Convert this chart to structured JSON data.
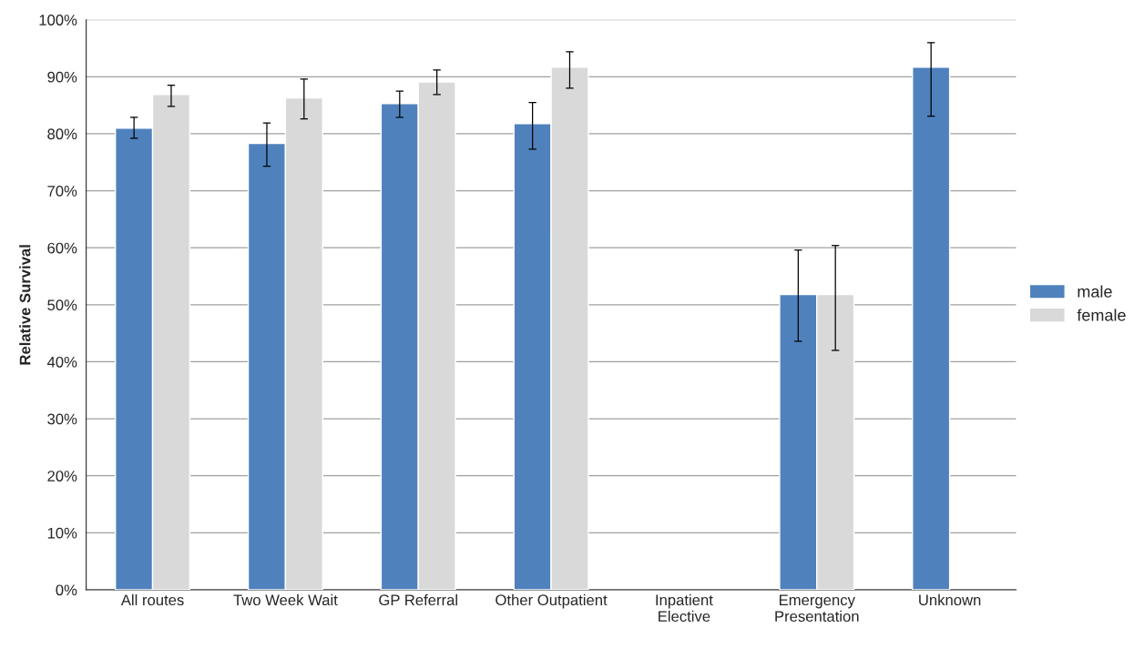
{
  "chart_data": {
    "type": "bar",
    "ylabel": "Relative Survival",
    "categories": [
      "All routes",
      "Two Week Wait",
      "GP Referral",
      "Other Outpatient",
      "Inpatient\nElective",
      "Emergency\nPresentation",
      "Unknown"
    ],
    "series": [
      {
        "name": "male",
        "color": "#4f81bd",
        "values": [
          81.0,
          78.3,
          85.3,
          81.8,
          null,
          51.8,
          91.7
        ],
        "errors": [
          [
            79.2,
            82.9
          ],
          [
            74.3,
            81.9
          ],
          [
            82.9,
            87.5
          ],
          [
            77.3,
            85.5
          ],
          null,
          [
            43.6,
            59.6
          ],
          [
            83.1,
            96.0
          ]
        ]
      },
      {
        "name": "female",
        "color": "#d9d9d9",
        "values": [
          86.9,
          86.3,
          89.1,
          91.7,
          null,
          51.8,
          null
        ],
        "errors": [
          [
            84.8,
            88.5
          ],
          [
            82.6,
            89.6
          ],
          [
            86.9,
            91.2
          ],
          [
            88.0,
            94.4
          ],
          null,
          [
            42.0,
            60.4
          ],
          null
        ]
      }
    ],
    "ylim": [
      0,
      100
    ],
    "yticks": [
      {
        "value": 0,
        "label": "0%"
      },
      {
        "value": 10,
        "label": "10%"
      },
      {
        "value": 20,
        "label": "20%"
      },
      {
        "value": 30,
        "label": "30%"
      },
      {
        "value": 40,
        "label": "40%"
      },
      {
        "value": 50,
        "label": "50%"
      },
      {
        "value": 60,
        "label": "60%"
      },
      {
        "value": 70,
        "label": "70%"
      },
      {
        "value": 80,
        "label": "80%"
      },
      {
        "value": 90,
        "label": "90%"
      },
      {
        "value": 100,
        "label": "100%"
      }
    ],
    "grid": "y",
    "legend": "right"
  }
}
